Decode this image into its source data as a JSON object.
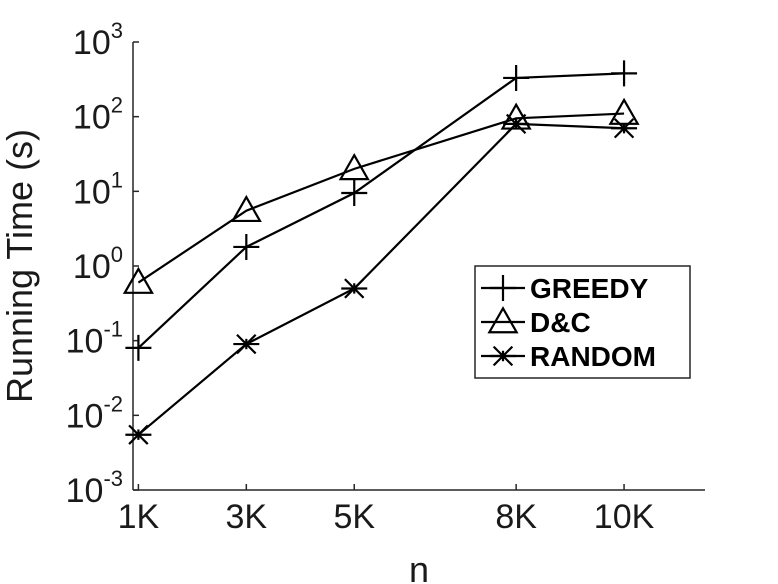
{
  "chart_data": {
    "type": "line",
    "title": "",
    "xlabel": "n",
    "ylabel": "Running Time (s)",
    "x_values": [
      1,
      3,
      5,
      8,
      10
    ],
    "x_tick_labels": [
      "1K",
      "3K",
      "5K",
      "8K",
      "10K"
    ],
    "xlim": [
      0.9,
      11.5
    ],
    "y_scale": "log",
    "ylim": [
      0.001,
      1000
    ],
    "y_ticks": [
      {
        "value": 1000,
        "base": "10",
        "exp": "3"
      },
      {
        "value": 100,
        "base": "10",
        "exp": "2"
      },
      {
        "value": 10,
        "base": "10",
        "exp": "1"
      },
      {
        "value": 1,
        "base": "10",
        "exp": "0"
      },
      {
        "value": 0.1,
        "base": "10",
        "exp": "-1"
      },
      {
        "value": 0.01,
        "base": "10",
        "exp": "-2"
      },
      {
        "value": 0.001,
        "base": "10",
        "exp": "-3"
      }
    ],
    "grid": false,
    "legend_position": "right",
    "series": [
      {
        "name": "GREEDY",
        "marker": "plus",
        "values": [
          0.08,
          1.8,
          9.5,
          330,
          380
        ]
      },
      {
        "name": "D&C",
        "marker": "triangle",
        "values": [
          0.6,
          5.5,
          20,
          95,
          110
        ]
      },
      {
        "name": "RANDOM",
        "marker": "asterisk",
        "values": [
          0.0055,
          0.09,
          0.5,
          80,
          70
        ]
      }
    ],
    "color": "#000000"
  }
}
